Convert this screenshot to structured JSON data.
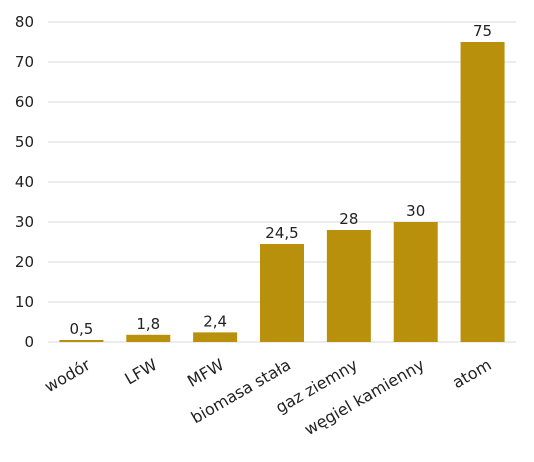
{
  "chart_data": {
    "type": "bar",
    "categories": [
      "wodór",
      "LFW",
      "MFW",
      "biomasa stała",
      "gaz ziemny",
      "węgiel kamienny",
      "atom"
    ],
    "values": [
      0.5,
      1.8,
      2.4,
      24.5,
      28,
      30,
      75
    ],
    "data_labels": [
      "0,5",
      "1,8",
      "2,4",
      "24,5",
      "28",
      "30",
      "75"
    ],
    "ylim": [
      0,
      80
    ],
    "yticks": [
      0,
      10,
      20,
      30,
      40,
      50,
      60,
      70,
      80
    ],
    "grid": true,
    "bar_color": "#B8900B",
    "title": "",
    "xlabel": "",
    "ylabel": ""
  }
}
